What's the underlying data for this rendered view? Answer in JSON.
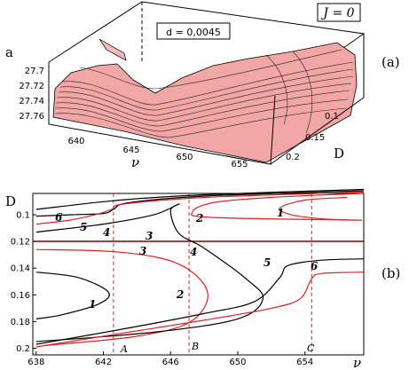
{
  "panel_a": {
    "label": "(a)",
    "j_label": "J = 0",
    "d_label": "d = 0,0045",
    "z_axis_label": "a",
    "z_ticks": [
      "27.7",
      "27.72",
      "27.74",
      "27.76"
    ],
    "x_axis_label": "ν",
    "x_ticks": [
      "640",
      "645",
      "650",
      "655"
    ],
    "y_axis_label": "D",
    "y_ticks": [
      "0.1",
      "0.15",
      "0.2"
    ]
  },
  "panel_b": {
    "label": "(b)",
    "y_axis_label": "D",
    "x_axis_label": "ν",
    "x_ticks": [
      "638",
      "642",
      "646",
      "650",
      "654"
    ],
    "y_ticks": [
      "0.1",
      "0.12",
      "0.14",
      "0.16",
      "0.18",
      "0.2"
    ],
    "curve_numbers": [
      "1",
      "2",
      "3",
      "4",
      "5",
      "6"
    ],
    "ref_lines": [
      "A",
      "B",
      "C"
    ]
  },
  "colors": {
    "red": "#e02020",
    "black": "#000000",
    "surface": "#f3a6a6"
  },
  "chart_data": [
    {
      "type": "area",
      "title": "",
      "panel": "(a)",
      "xlabel": "ν",
      "ylabel": "D",
      "zlabel": "a",
      "xlim": [
        638,
        658
      ],
      "ylim": [
        0.07,
        0.22
      ],
      "zlim": [
        27.7,
        27.77
      ],
      "annotations": [
        "J = 0",
        "d = 0,0045"
      ]
    },
    {
      "type": "line",
      "title": "",
      "panel": "(b)",
      "xlabel": "ν",
      "ylabel": "D",
      "xlim": [
        637.8,
        657.5
      ],
      "ylim": [
        0.084,
        0.205
      ],
      "reference_lines": [
        {
          "label": "A",
          "x": 642.6
        },
        {
          "label": "B",
          "x": 647.1
        },
        {
          "label": "C",
          "x": 654.4
        }
      ],
      "series": [
        {
          "name": "1",
          "color": "red",
          "x": [
            656.5,
            654,
            652.5,
            653.2,
            655,
            657
          ],
          "y": [
            0.087,
            0.089,
            0.095,
            0.1,
            0.103,
            0.104
          ]
        },
        {
          "name": "1",
          "color": "black",
          "x": [
            638,
            640.5,
            642.3,
            641.7,
            639.5,
            638
          ],
          "y": [
            0.143,
            0.147,
            0.158,
            0.167,
            0.175,
            0.178
          ]
        },
        {
          "name": "2",
          "color": "red",
          "x": [
            657.4,
            652,
            648.5,
            647.3,
            648.5,
            657.4
          ],
          "y": [
            0.084,
            0.087,
            0.091,
            0.098,
            0.102,
            0.104
          ]
        },
        {
          "name": "2",
          "color": "red",
          "x": [
            638,
            643,
            646.5,
            648.2,
            647.2,
            644,
            638.5
          ],
          "y": [
            0.126,
            0.128,
            0.137,
            0.158,
            0.18,
            0.191,
            0.198
          ]
        },
        {
          "name": "3",
          "color": "black",
          "x": [
            638,
            642,
            645,
            646.5,
            646,
            646.5,
            648,
            650.5,
            651.5,
            650,
            645,
            638
          ],
          "y": [
            0.113,
            0.107,
            0.1,
            0.092,
            0.097,
            0.114,
            0.125,
            0.148,
            0.163,
            0.178,
            0.188,
            0.195
          ]
        },
        {
          "name": "4",
          "color": "black",
          "x": [
            638,
            640,
            642,
            642.6,
            643.5,
            648,
            657.5
          ],
          "y": [
            0.101,
            0.1,
            0.099,
            0.096,
            0.091,
            0.086,
            0.082
          ]
        },
        {
          "name": "4",
          "color": "red",
          "x": [
            638,
            640,
            641.5,
            642.5,
            643.2,
            648,
            657.5
          ],
          "y": [
            0.107,
            0.104,
            0.1,
            0.096,
            0.092,
            0.087,
            0.083
          ]
        },
        {
          "name": "5",
          "color": "black",
          "x": [
            638,
            643,
            648,
            651,
            652.5,
            653,
            655,
            657.5
          ],
          "y": [
            0.197,
            0.186,
            0.174,
            0.165,
            0.147,
            0.138,
            0.134,
            0.133
          ]
        },
        {
          "name": "6",
          "color": "red",
          "x": [
            638,
            643,
            648,
            652,
            653.7,
            654.4,
            655,
            657.5
          ],
          "y": [
            0.199,
            0.189,
            0.179,
            0.17,
            0.163,
            0.148,
            0.144,
            0.143
          ]
        },
        {
          "name": "6",
          "color": "black",
          "x": [
            638,
            643,
            648,
            657.5
          ],
          "y": [
            0.096,
            0.089,
            0.085,
            0.081
          ]
        }
      ]
    }
  ]
}
